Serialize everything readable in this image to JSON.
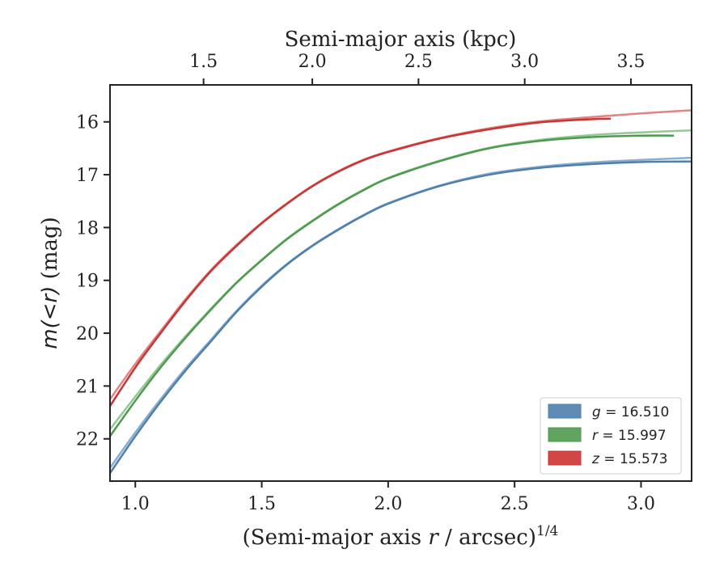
{
  "chart_data": {
    "type": "line",
    "xlabel_bottom": "(Semi-major axis r / arcsec)",
    "xlabel_bottom_parts": {
      "prefix": "(Semi-major axis ",
      "var": "r",
      "suffix": " / arcsec)",
      "exponent": "1/4"
    },
    "xlabel_top": "Semi-major axis (kpc)",
    "ylabel": "m(<r) (mag)",
    "ylabel_parts": {
      "math": "m(<r)",
      "suffix": " (mag)"
    },
    "xlim": [
      0.9,
      3.2
    ],
    "ylim": [
      22.8,
      15.3
    ],
    "y_inverted": true,
    "bottom_ticks": [
      {
        "value": 1.0,
        "label": "1.0"
      },
      {
        "value": 1.5,
        "label": "1.5"
      },
      {
        "value": 2.0,
        "label": "2.0"
      },
      {
        "value": 2.5,
        "label": "2.5"
      },
      {
        "value": 3.0,
        "label": "3.0"
      }
    ],
    "top_ticks": [
      {
        "value": 1.5,
        "label": "1.5",
        "bottom_axis_position": 1.27
      },
      {
        "value": 2.0,
        "label": "2.0",
        "bottom_axis_position": 1.7
      },
      {
        "value": 2.5,
        "label": "2.5",
        "bottom_axis_position": 2.12
      },
      {
        "value": 3.0,
        "label": "3.0",
        "bottom_axis_position": 2.54
      },
      {
        "value": 3.5,
        "label": "3.5",
        "bottom_axis_position": 2.96
      }
    ],
    "y_ticks": [
      {
        "value": 16,
        "label": "16"
      },
      {
        "value": 17,
        "label": "17"
      },
      {
        "value": 18,
        "label": "18"
      },
      {
        "value": 19,
        "label": "19"
      },
      {
        "value": 20,
        "label": "20"
      },
      {
        "value": 21,
        "label": "21"
      },
      {
        "value": 22,
        "label": "22"
      }
    ],
    "series": [
      {
        "name": "g",
        "legend_var": "g",
        "legend_value": "= 16.510",
        "color": "#4e7fad",
        "model_color": "#7ea4c9",
        "data": {
          "x": [
            0.9,
            1.0,
            1.1,
            1.2,
            1.3,
            1.4,
            1.5,
            1.6,
            1.7,
            1.8,
            1.9,
            2.0,
            2.2,
            2.4,
            2.6,
            2.8,
            3.0,
            3.2
          ],
          "y": [
            22.65,
            21.95,
            21.3,
            20.7,
            20.15,
            19.6,
            19.12,
            18.7,
            18.35,
            18.05,
            17.78,
            17.55,
            17.22,
            17.0,
            16.87,
            16.8,
            16.76,
            16.75
          ]
        },
        "model": {
          "x": [
            0.9,
            1.0,
            1.1,
            1.2,
            1.3,
            1.4,
            1.5,
            1.6,
            1.7,
            1.8,
            1.9,
            2.0,
            2.2,
            2.4,
            2.6,
            2.8,
            3.0,
            3.2
          ],
          "y": [
            22.55,
            21.88,
            21.25,
            20.66,
            20.12,
            19.58,
            19.1,
            18.69,
            18.34,
            18.04,
            17.77,
            17.54,
            17.21,
            16.98,
            16.85,
            16.77,
            16.72,
            16.68
          ]
        }
      },
      {
        "name": "r",
        "legend_var": "r",
        "legend_value": "= 15.997",
        "color": "#4e9a4e",
        "model_color": "#8cc08c",
        "data": {
          "x": [
            0.9,
            1.0,
            1.1,
            1.2,
            1.3,
            1.4,
            1.5,
            1.6,
            1.7,
            1.8,
            1.9,
            2.0,
            2.2,
            2.4,
            2.6,
            2.8,
            3.0,
            3.13
          ],
          "y": [
            21.95,
            21.28,
            20.65,
            20.08,
            19.55,
            19.05,
            18.62,
            18.22,
            17.88,
            17.57,
            17.3,
            17.07,
            16.75,
            16.5,
            16.36,
            16.29,
            16.26,
            16.26
          ]
        },
        "model": {
          "x": [
            0.9,
            1.0,
            1.1,
            1.2,
            1.3,
            1.4,
            1.5,
            1.6,
            1.7,
            1.8,
            1.9,
            2.0,
            2.2,
            2.4,
            2.6,
            2.8,
            3.0,
            3.2
          ],
          "y": [
            21.82,
            21.2,
            20.6,
            20.05,
            19.53,
            19.04,
            18.61,
            18.21,
            17.87,
            17.56,
            17.29,
            17.06,
            16.74,
            16.49,
            16.34,
            16.25,
            16.2,
            16.16
          ]
        }
      },
      {
        "name": "z",
        "legend_var": "z",
        "legend_value": "= 15.573",
        "color": "#cc3333",
        "model_color": "#dd7777",
        "data": {
          "x": [
            0.9,
            1.0,
            1.1,
            1.2,
            1.3,
            1.4,
            1.5,
            1.6,
            1.7,
            1.8,
            1.9,
            2.0,
            2.2,
            2.4,
            2.6,
            2.8,
            2.88
          ],
          "y": [
            21.38,
            20.65,
            20.0,
            19.38,
            18.82,
            18.35,
            17.92,
            17.55,
            17.22,
            16.95,
            16.73,
            16.57,
            16.32,
            16.14,
            16.01,
            15.95,
            15.94
          ]
        },
        "model": {
          "x": [
            0.9,
            1.0,
            1.1,
            1.2,
            1.3,
            1.4,
            1.5,
            1.6,
            1.7,
            1.8,
            1.9,
            2.0,
            2.2,
            2.4,
            2.6,
            2.8,
            3.0,
            3.2
          ],
          "y": [
            21.25,
            20.58,
            19.96,
            19.35,
            18.8,
            18.33,
            17.91,
            17.54,
            17.21,
            16.94,
            16.72,
            16.56,
            16.31,
            16.12,
            15.99,
            15.91,
            15.84,
            15.78
          ]
        }
      }
    ],
    "legend_position": "lower-right"
  }
}
